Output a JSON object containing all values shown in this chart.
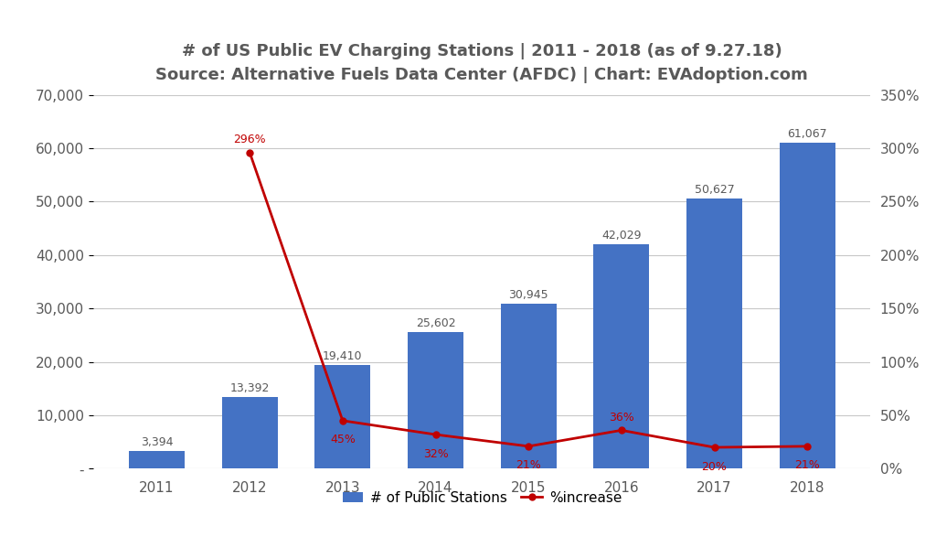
{
  "years": [
    "2011",
    "2012",
    "2013",
    "2014",
    "2015",
    "2016",
    "2017",
    "2018"
  ],
  "stations": [
    3394,
    13392,
    19410,
    25602,
    30945,
    42029,
    50627,
    61067
  ],
  "pct_increase": [
    null,
    2.96,
    0.45,
    0.32,
    0.21,
    0.36,
    0.2,
    0.21
  ],
  "bar_color": "#4472C4",
  "line_color": "#C00000",
  "title_line1": "# of US Public EV Charging Stations | 2011 - 2018 (as of 9.27.18)",
  "title_line2": "Source: Alternative Fuels Data Center (AFDC) | Chart: EVAdoption.com",
  "legend_bar": "# of Public Stations",
  "legend_line": "%increase",
  "ylim_left": [
    0,
    70000
  ],
  "ylim_right": [
    0,
    3.5
  ],
  "yticks_left": [
    0,
    10000,
    20000,
    30000,
    40000,
    50000,
    60000,
    70000
  ],
  "yticks_right": [
    0.0,
    0.5,
    1.0,
    1.5,
    2.0,
    2.5,
    3.0,
    3.5
  ],
  "bar_labels": [
    "3,394",
    "13,392",
    "19,410",
    "25,602",
    "30,945",
    "42,029",
    "50,627",
    "61,067"
  ],
  "pct_labels": [
    "296%",
    "45%",
    "32%",
    "21%",
    "36%",
    "20%",
    "21%"
  ],
  "pct_label_dy": [
    0.12,
    -0.18,
    -0.18,
    -0.18,
    0.12,
    -0.18,
    -0.18
  ],
  "background_color": "#FFFFFF",
  "grid_color": "#C8C8C8",
  "text_color": "#595959"
}
